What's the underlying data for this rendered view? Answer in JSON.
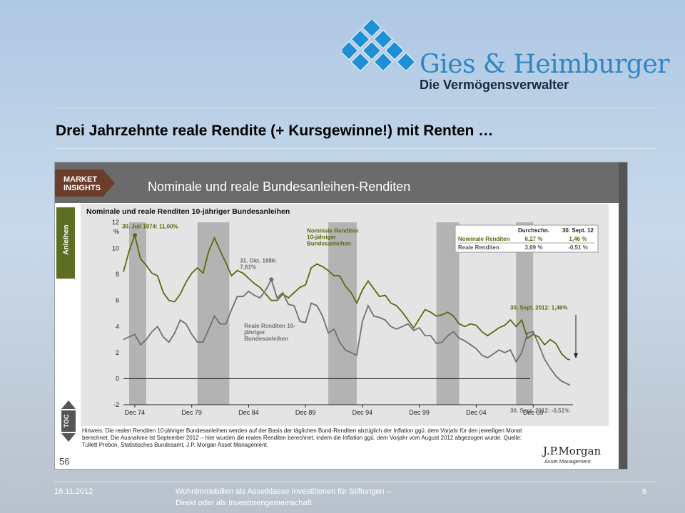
{
  "brand": {
    "name": "Gies & Heimburger",
    "tagline": "Die Vermögensverwalter",
    "accent": "#2f87c4"
  },
  "slide": {
    "title": "Drei Jahrzehnte reale Rendite (+ Kursgewinne!) mit Renten …"
  },
  "panel": {
    "badge": "MARKET INSIGHTS",
    "title": "Nominale und reale Bundesanleihen-Renditen",
    "side_tab": "Anleihen",
    "toc_label": "TOC",
    "page_number": "56"
  },
  "chart_data": {
    "type": "line",
    "title": "Nominale und reale Renditen 10-jähriger Bundesanleihen",
    "ylabel": "%",
    "ylim": [
      -2,
      12
    ],
    "yticks": [
      -2,
      0,
      2,
      4,
      6,
      8,
      10,
      12
    ],
    "xlim": [
      1973.5,
      2013.0
    ],
    "xticks": [
      1974.5,
      1979.5,
      1984.5,
      1989.5,
      1994.5,
      1999.5,
      2004.5,
      2009.5
    ],
    "xtick_labels": [
      "Dec 74",
      "Dec 79",
      "Dec 84",
      "Dec 89",
      "Dec 94",
      "Dec 99",
      "Dec 04",
      "Dec 09"
    ],
    "recessions": [
      [
        1974.0,
        1975.5
      ],
      [
        1980.0,
        1982.8
      ],
      [
        1991.5,
        1994.0
      ],
      [
        2001.0,
        2003.0
      ],
      [
        2008.0,
        2009.5
      ]
    ],
    "series": [
      {
        "name": "Nominale Renditen 10-jähriger Bundesanleihen",
        "color": "#5a6a10",
        "points": [
          [
            1973.5,
            8.2
          ],
          [
            1974.0,
            9.8
          ],
          [
            1974.5,
            11.0
          ],
          [
            1975.0,
            9.2
          ],
          [
            1975.5,
            8.7
          ],
          [
            1976.0,
            8.1
          ],
          [
            1976.5,
            7.9
          ],
          [
            1977.0,
            6.6
          ],
          [
            1977.5,
            6.0
          ],
          [
            1978.0,
            5.9
          ],
          [
            1978.5,
            6.5
          ],
          [
            1979.0,
            7.4
          ],
          [
            1979.5,
            8.1
          ],
          [
            1980.0,
            8.5
          ],
          [
            1980.5,
            8.1
          ],
          [
            1981.0,
            9.8
          ],
          [
            1981.5,
            10.8
          ],
          [
            1982.0,
            9.8
          ],
          [
            1982.5,
            8.9
          ],
          [
            1983.0,
            7.9
          ],
          [
            1983.5,
            8.3
          ],
          [
            1984.0,
            8.1
          ],
          [
            1984.5,
            7.7
          ],
          [
            1985.0,
            7.3
          ],
          [
            1985.5,
            7.0
          ],
          [
            1986.0,
            6.5
          ],
          [
            1986.5,
            6.0
          ],
          [
            1987.0,
            6.0
          ],
          [
            1987.5,
            6.5
          ],
          [
            1988.0,
            6.2
          ],
          [
            1988.5,
            6.6
          ],
          [
            1989.0,
            7.0
          ],
          [
            1989.5,
            7.2
          ],
          [
            1990.0,
            8.5
          ],
          [
            1990.5,
            8.8
          ],
          [
            1991.0,
            8.6
          ],
          [
            1991.5,
            8.3
          ],
          [
            1992.0,
            7.9
          ],
          [
            1992.5,
            7.9
          ],
          [
            1993.0,
            7.1
          ],
          [
            1993.5,
            6.6
          ],
          [
            1994.0,
            5.8
          ],
          [
            1994.5,
            6.8
          ],
          [
            1995.0,
            7.5
          ],
          [
            1995.5,
            6.9
          ],
          [
            1996.0,
            6.3
          ],
          [
            1996.5,
            6.4
          ],
          [
            1997.0,
            5.8
          ],
          [
            1997.5,
            5.6
          ],
          [
            1998.0,
            5.1
          ],
          [
            1998.5,
            4.5
          ],
          [
            1999.0,
            3.9
          ],
          [
            1999.5,
            4.6
          ],
          [
            2000.0,
            5.3
          ],
          [
            2000.5,
            5.1
          ],
          [
            2001.0,
            4.8
          ],
          [
            2001.5,
            4.9
          ],
          [
            2002.0,
            5.1
          ],
          [
            2002.5,
            4.8
          ],
          [
            2003.0,
            4.2
          ],
          [
            2003.5,
            4.0
          ],
          [
            2004.0,
            4.2
          ],
          [
            2004.5,
            4.1
          ],
          [
            2005.0,
            3.6
          ],
          [
            2005.5,
            3.3
          ],
          [
            2006.0,
            3.6
          ],
          [
            2006.5,
            3.9
          ],
          [
            2007.0,
            4.1
          ],
          [
            2007.5,
            4.5
          ],
          [
            2008.0,
            4.0
          ],
          [
            2008.5,
            4.5
          ],
          [
            2009.0,
            3.1
          ],
          [
            2009.5,
            3.4
          ],
          [
            2010.0,
            3.2
          ],
          [
            2010.5,
            2.6
          ],
          [
            2011.0,
            3.0
          ],
          [
            2011.5,
            2.7
          ],
          [
            2012.0,
            1.9
          ],
          [
            2012.5,
            1.5
          ],
          [
            2012.75,
            1.46
          ]
        ]
      },
      {
        "name": "Reale Renditen 10-jähriger Bundesanleihen",
        "color": "#707070",
        "points": [
          [
            1973.5,
            3.0
          ],
          [
            1974.0,
            3.2
          ],
          [
            1974.5,
            3.4
          ],
          [
            1975.0,
            2.6
          ],
          [
            1975.5,
            3.0
          ],
          [
            1976.0,
            3.6
          ],
          [
            1976.5,
            4.0
          ],
          [
            1977.0,
            3.2
          ],
          [
            1977.5,
            2.8
          ],
          [
            1978.0,
            3.5
          ],
          [
            1978.5,
            4.5
          ],
          [
            1979.0,
            4.2
          ],
          [
            1979.5,
            3.4
          ],
          [
            1980.0,
            2.8
          ],
          [
            1980.5,
            2.8
          ],
          [
            1981.0,
            3.8
          ],
          [
            1981.5,
            4.8
          ],
          [
            1982.0,
            4.2
          ],
          [
            1982.5,
            4.2
          ],
          [
            1983.0,
            5.3
          ],
          [
            1983.5,
            6.3
          ],
          [
            1984.0,
            6.3
          ],
          [
            1984.5,
            6.7
          ],
          [
            1985.0,
            6.4
          ],
          [
            1985.5,
            6.2
          ],
          [
            1986.0,
            6.8
          ],
          [
            1986.5,
            7.61
          ],
          [
            1987.0,
            6.2
          ],
          [
            1987.5,
            6.6
          ],
          [
            1988.0,
            5.7
          ],
          [
            1988.5,
            5.6
          ],
          [
            1989.0,
            4.4
          ],
          [
            1989.5,
            4.3
          ],
          [
            1990.0,
            5.8
          ],
          [
            1990.5,
            5.6
          ],
          [
            1991.0,
            4.8
          ],
          [
            1991.5,
            3.5
          ],
          [
            1992.0,
            3.8
          ],
          [
            1992.5,
            2.8
          ],
          [
            1993.0,
            2.2
          ],
          [
            1993.5,
            2.0
          ],
          [
            1994.0,
            1.8
          ],
          [
            1994.5,
            4.4
          ],
          [
            1995.0,
            5.6
          ],
          [
            1995.5,
            4.8
          ],
          [
            1996.0,
            4.7
          ],
          [
            1996.5,
            4.5
          ],
          [
            1997.0,
            4.0
          ],
          [
            1997.5,
            3.8
          ],
          [
            1998.0,
            4.0
          ],
          [
            1998.5,
            4.2
          ],
          [
            1999.0,
            3.7
          ],
          [
            1999.5,
            3.9
          ],
          [
            2000.0,
            3.3
          ],
          [
            2000.5,
            3.3
          ],
          [
            2001.0,
            2.7
          ],
          [
            2001.5,
            2.8
          ],
          [
            2002.0,
            3.3
          ],
          [
            2002.5,
            3.6
          ],
          [
            2003.0,
            3.1
          ],
          [
            2003.5,
            2.9
          ],
          [
            2004.0,
            2.6
          ],
          [
            2004.5,
            2.3
          ],
          [
            2005.0,
            1.8
          ],
          [
            2005.5,
            1.6
          ],
          [
            2006.0,
            1.9
          ],
          [
            2006.5,
            2.2
          ],
          [
            2007.0,
            2.0
          ],
          [
            2007.5,
            2.2
          ],
          [
            2008.0,
            1.3
          ],
          [
            2008.5,
            2.0
          ],
          [
            2009.0,
            3.5
          ],
          [
            2009.5,
            3.6
          ],
          [
            2010.0,
            2.6
          ],
          [
            2010.5,
            1.5
          ],
          [
            2011.0,
            0.8
          ],
          [
            2011.5,
            0.2
          ],
          [
            2012.0,
            -0.2
          ],
          [
            2012.5,
            -0.4
          ],
          [
            2012.75,
            -0.51
          ]
        ]
      }
    ],
    "annotations": [
      {
        "text": "30. Juli 1974: 11,00%",
        "x": 1974.5,
        "y": 11.0,
        "color": "#5a6a10"
      },
      {
        "text": "31. Okt. 1986: 7,61%",
        "x": 1986.5,
        "y": 7.61,
        "color": "#707070"
      },
      {
        "text": "Nominale Renditen 10-jähriger Bundesanleihen",
        "x": 1990.5,
        "y": 8.8,
        "color": "#5a6a10"
      },
      {
        "text": "Reale Renditen 10-jähriger Bundesanleihen",
        "x": 1988.0,
        "y": 5.0,
        "color": "#707070"
      },
      {
        "text": "30. Sept. 2012: 1,46%",
        "x": 2012.75,
        "y": 1.46,
        "color": "#5a6a10"
      },
      {
        "text": "30. Sept. 2012: -0,51%",
        "x": 2012.75,
        "y": -0.51,
        "color": "#707070"
      }
    ],
    "table": {
      "headers": [
        "",
        "Durchschn.",
        "30. Sept. 12"
      ],
      "rows": [
        [
          "Nominale Renditen",
          "6,27 %",
          "1,46 %"
        ],
        [
          "Reale Renditen",
          "3,69 %",
          "-0,51 %"
        ]
      ]
    },
    "grid": false
  },
  "note": "Hinweis: Die realen Renditen 10-jähriger Bundesanleihen werden auf der Basis der täglichen Bund-Renditen abzüglich der Inflation ggü. dem Vorjahr für den jeweiligen Monat berechnet. Die Ausnahme ist September 2012 – hier wurden die realen Renditen berechnet, indem die Inflation ggü. dem Vorjahr vom August 2012 abgezogen wurde. Quelle: Tullett Prebon, Statistisches Bundesamt, J.P. Morgan Asset Management.",
  "source_logo": {
    "name": "J.P.Morgan",
    "sub": "Asset Management"
  },
  "footer": {
    "date": "16.11.2012",
    "subject_line1": "Wohnimmobilien als Assetklasse Investitionen für Stiftungen –",
    "subject_line2": "Direkt oder als Investorengemeinschaft",
    "page": "6"
  }
}
